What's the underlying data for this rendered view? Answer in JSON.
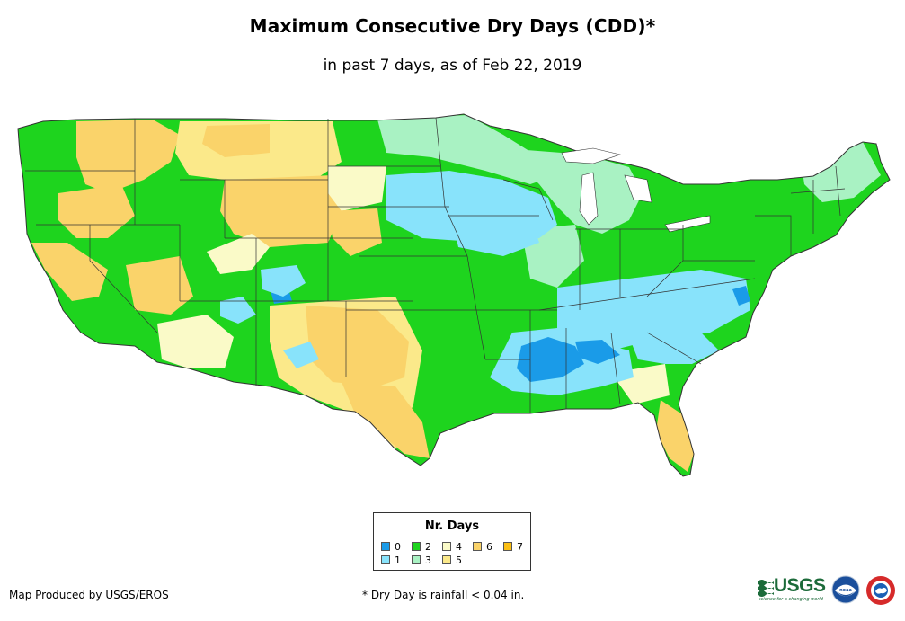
{
  "title": "Maximum Consecutive Dry Days (CDD)*",
  "subtitle": "in past 7 days, as of Feb 22, 2019",
  "legend": {
    "title": "Nr. Days",
    "items": [
      {
        "label": "0",
        "color": "#1a9be8"
      },
      {
        "label": "1",
        "color": "#88e3fb"
      },
      {
        "label": "2",
        "color": "#1ed41e"
      },
      {
        "label": "3",
        "color": "#a9f2c3"
      },
      {
        "label": "4",
        "color": "#fafac8"
      },
      {
        "label": "5",
        "color": "#fbe98a"
      },
      {
        "label": "6",
        "color": "#fad36a"
      },
      {
        "label": "7",
        "color": "#fbbf14"
      }
    ]
  },
  "credit": "Map Produced by USGS/EROS",
  "footnote": "* Dry Day is rainfall < 0.04 in.",
  "logos": {
    "usgs_word": "USGS",
    "usgs_tagline": "science for a changing world",
    "noaa_text": "noaa"
  }
}
